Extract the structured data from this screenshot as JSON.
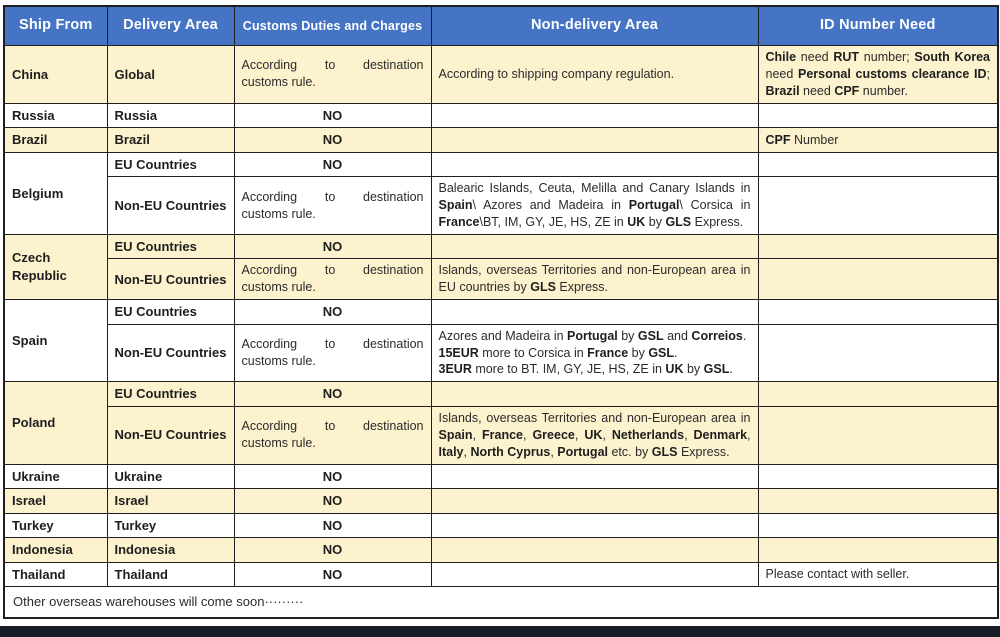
{
  "colors": {
    "header_bg": "#4574C4",
    "header_text": "#FFFFFF",
    "row_cream": "#FCF2CE",
    "row_white": "#FFFFFF",
    "border": "#1F1F1F",
    "bottom_bar": "#161C28"
  },
  "header": {
    "columns": [
      {
        "label": "Ship From"
      },
      {
        "label": "Delivery Area"
      },
      {
        "label": "Customs Duties and Charges",
        "small": true
      },
      {
        "label": "Non-delivery Area"
      },
      {
        "label": "ID Number Need"
      }
    ]
  },
  "col_names": [
    "ship-from",
    "delivery-area",
    "customs-duties",
    "non-delivery-area",
    "id-number-need"
  ],
  "rows": [
    {
      "bg": "cream",
      "cells": [
        {
          "text": "**China**",
          "cls": "col-ship"
        },
        {
          "text": "**Global**",
          "cls": "bold"
        },
        {
          "text": "According to destination customs rule.",
          "cls": "justify"
        },
        {
          "text": "According to shipping company regulation."
        },
        {
          "text": "**Chile** need **RUT** number; **South Korea** need **Personal customs clearance ID**; **Brazil** need **CPF** number.",
          "cls": "justify"
        }
      ]
    },
    {
      "bg": "white",
      "cells": [
        {
          "text": "**Russia**",
          "cls": "col-ship"
        },
        {
          "text": "**Russia**",
          "cls": "bold"
        },
        {
          "text": "**NO**",
          "cls": "center"
        },
        {
          "text": ""
        },
        {
          "text": ""
        }
      ]
    },
    {
      "bg": "cream",
      "cells": [
        {
          "text": "**Brazil**",
          "cls": "col-ship"
        },
        {
          "text": "**Brazil**",
          "cls": "bold"
        },
        {
          "text": "**NO**",
          "cls": "center"
        },
        {
          "text": ""
        },
        {
          "text": "**CPF** Number"
        }
      ]
    },
    {
      "bg": "white",
      "cells": [
        {
          "text": "**Belgium**",
          "cls": "col-ship",
          "rowspan": 2
        },
        {
          "text": "**EU Countries**",
          "cls": "bold"
        },
        {
          "text": "**NO**",
          "cls": "center"
        },
        {
          "text": ""
        },
        {
          "text": ""
        }
      ]
    },
    {
      "bg": "white",
      "cells": [
        {
          "text": "**Non-EU Countries**",
          "cls": "bold"
        },
        {
          "text": "According to destination customs rule.",
          "cls": "justify"
        },
        {
          "text": "Balearic Islands, Ceuta, Melilla and Canary Islands in **Spain**\\ Azores and Madeira in **Portugal**\\ Corsica in **France**\\BT, IM, GY, JE, HS, ZE in **UK** by **GLS** Express.",
          "cls": "justify"
        },
        {
          "text": ""
        }
      ]
    },
    {
      "bg": "cream",
      "cells": [
        {
          "text": "**Czech Republic**",
          "cls": "col-ship",
          "rowspan": 2
        },
        {
          "text": "**EU Countries**",
          "cls": "bold"
        },
        {
          "text": "**NO**",
          "cls": "center"
        },
        {
          "text": ""
        },
        {
          "text": ""
        }
      ]
    },
    {
      "bg": "cream",
      "cells": [
        {
          "text": "**Non-EU Countries**",
          "cls": "bold"
        },
        {
          "text": "According to destination customs rule.",
          "cls": "justify"
        },
        {
          "text": "Islands, overseas Territories and non-European area in EU countries by **GLS** Express.",
          "cls": "justify"
        },
        {
          "text": ""
        }
      ]
    },
    {
      "bg": "white",
      "cells": [
        {
          "text": "**Spain**",
          "cls": "col-ship",
          "rowspan": 2
        },
        {
          "text": "**EU Countries**",
          "cls": "bold"
        },
        {
          "text": "**NO**",
          "cls": "center"
        },
        {
          "text": ""
        },
        {
          "text": ""
        }
      ]
    },
    {
      "bg": "white",
      "cells": [
        {
          "text": "**Non-EU Countries**",
          "cls": "bold"
        },
        {
          "text": "According to destination customs rule.",
          "cls": "justify"
        },
        {
          "text": "Azores and Madeira in **Portugal** by **GSL** and **Correios**.\n**15EUR** more to Corsica in **France** by **GSL**.\n**3EUR** more to BT. IM, GY, JE, HS, ZE in **UK** by **GSL**."
        },
        {
          "text": ""
        }
      ]
    },
    {
      "bg": "cream",
      "cells": [
        {
          "text": "**Poland**",
          "cls": "col-ship",
          "rowspan": 2
        },
        {
          "text": "**EU Countries**",
          "cls": "bold"
        },
        {
          "text": "**NO**",
          "cls": "center"
        },
        {
          "text": ""
        },
        {
          "text": ""
        }
      ]
    },
    {
      "bg": "cream",
      "cells": [
        {
          "text": "**Non-EU Countries**",
          "cls": "bold"
        },
        {
          "text": "According to destination customs rule.",
          "cls": "justify"
        },
        {
          "text": "Islands, overseas Territories and non-European area in **Spain**, **France**, **Greece**, **UK**, **Netherlands**, **Denmark**, **Italy**, **North Cyprus**, **Portugal** etc. by **GLS** Express.",
          "cls": "justify"
        },
        {
          "text": ""
        }
      ]
    },
    {
      "bg": "white",
      "cells": [
        {
          "text": "**Ukraine**",
          "cls": "col-ship"
        },
        {
          "text": "**Ukraine**",
          "cls": "bold"
        },
        {
          "text": "**NO**",
          "cls": "center"
        },
        {
          "text": ""
        },
        {
          "text": ""
        }
      ]
    },
    {
      "bg": "cream",
      "cells": [
        {
          "text": "**Israel**",
          "cls": "col-ship"
        },
        {
          "text": "**Israel**",
          "cls": "bold"
        },
        {
          "text": "**NO**",
          "cls": "center"
        },
        {
          "text": ""
        },
        {
          "text": ""
        }
      ]
    },
    {
      "bg": "white",
      "cells": [
        {
          "text": "**Turkey**",
          "cls": "col-ship"
        },
        {
          "text": "**Turkey**",
          "cls": "bold"
        },
        {
          "text": "**NO**",
          "cls": "center"
        },
        {
          "text": ""
        },
        {
          "text": ""
        }
      ]
    },
    {
      "bg": "cream",
      "cells": [
        {
          "text": "**Indonesia**",
          "cls": "col-ship"
        },
        {
          "text": "**Indonesia**",
          "cls": "bold"
        },
        {
          "text": "**NO**",
          "cls": "center"
        },
        {
          "text": ""
        },
        {
          "text": ""
        }
      ]
    },
    {
      "bg": "white",
      "cells": [
        {
          "text": "**Thailand**",
          "cls": "col-ship"
        },
        {
          "text": "**Thailand**",
          "cls": "bold"
        },
        {
          "text": "**NO**",
          "cls": "center"
        },
        {
          "text": ""
        },
        {
          "text": "Please contact with seller."
        }
      ]
    },
    {
      "bg": "white",
      "cells": [
        {
          "text": "Other overseas warehouses will come soon·········",
          "cls": "footer-note",
          "colspan": 5
        }
      ]
    }
  ]
}
